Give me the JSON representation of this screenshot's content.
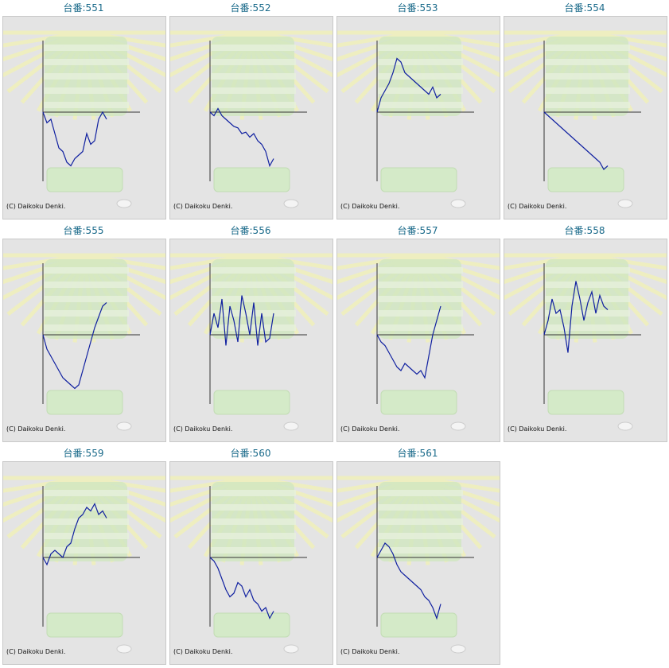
{
  "page": {
    "machine_prefix": "台番:",
    "copyright": "(C) Daikoku Denki.",
    "line_color": "#1020a0",
    "axis_color": "#333333",
    "panel_bg": "#e4e4e4",
    "title_color": "#1a6a8a"
  },
  "chart_data": [
    {
      "type": "line",
      "title": "台番:551",
      "ylim": [
        -1,
        1
      ],
      "x": [
        0,
        1,
        2,
        3,
        4,
        5,
        6,
        7,
        8,
        9,
        10,
        11,
        12,
        13,
        14,
        15,
        16
      ],
      "values": [
        0,
        -0.15,
        -0.1,
        -0.3,
        -0.5,
        -0.55,
        -0.7,
        -0.75,
        -0.65,
        -0.6,
        -0.55,
        -0.3,
        -0.45,
        -0.4,
        -0.1,
        0.0,
        -0.1
      ]
    },
    {
      "type": "line",
      "title": "台番:552",
      "ylim": [
        -1,
        1
      ],
      "x": [
        0,
        1,
        2,
        3,
        4,
        5,
        6,
        7,
        8,
        9,
        10,
        11,
        12,
        13,
        14,
        15,
        16
      ],
      "values": [
        0,
        -0.05,
        0.05,
        -0.05,
        -0.1,
        -0.15,
        -0.2,
        -0.22,
        -0.3,
        -0.28,
        -0.35,
        -0.3,
        -0.4,
        -0.45,
        -0.55,
        -0.75,
        -0.65
      ]
    },
    {
      "type": "line",
      "title": "台番:553",
      "ylim": [
        -1,
        1
      ],
      "x": [
        0,
        1,
        2,
        3,
        4,
        5,
        6,
        7,
        8,
        9,
        10,
        11,
        12,
        13,
        14,
        15,
        16
      ],
      "values": [
        0,
        0.2,
        0.3,
        0.4,
        0.55,
        0.75,
        0.7,
        0.55,
        0.5,
        0.45,
        0.4,
        0.35,
        0.3,
        0.25,
        0.35,
        0.2,
        0.25
      ]
    },
    {
      "type": "line",
      "title": "台番:554",
      "ylim": [
        -1,
        1
      ],
      "x": [
        0,
        1,
        2,
        3,
        4,
        5,
        6,
        7,
        8,
        9,
        10,
        11,
        12,
        13,
        14,
        15,
        16
      ],
      "values": [
        0,
        -0.05,
        -0.1,
        -0.15,
        -0.2,
        -0.25,
        -0.3,
        -0.35,
        -0.4,
        -0.45,
        -0.5,
        -0.55,
        -0.6,
        -0.65,
        -0.7,
        -0.8,
        -0.75
      ]
    },
    {
      "type": "line",
      "title": "台番:555",
      "ylim": [
        -1,
        1
      ],
      "x": [
        0,
        1,
        2,
        3,
        4,
        5,
        6,
        7,
        8,
        9,
        10,
        11,
        12,
        13,
        14,
        15,
        16
      ],
      "values": [
        0,
        -0.2,
        -0.3,
        -0.4,
        -0.5,
        -0.6,
        -0.65,
        -0.7,
        -0.75,
        -0.7,
        -0.5,
        -0.3,
        -0.1,
        0.1,
        0.25,
        0.4,
        0.45
      ]
    },
    {
      "type": "line",
      "title": "台番:556",
      "ylim": [
        -1,
        1
      ],
      "x": [
        0,
        1,
        2,
        3,
        4,
        5,
        6,
        7,
        8,
        9,
        10,
        11,
        12,
        13,
        14,
        15,
        16
      ],
      "values": [
        0,
        0.3,
        0.1,
        0.5,
        -0.15,
        0.4,
        0.2,
        -0.1,
        0.55,
        0.3,
        0.0,
        0.45,
        -0.15,
        0.3,
        -0.1,
        -0.05,
        0.3
      ]
    },
    {
      "type": "line",
      "title": "台番:557",
      "ylim": [
        -1,
        1
      ],
      "x": [
        0,
        1,
        2,
        3,
        4,
        5,
        6,
        7,
        8,
        9,
        10,
        11,
        12,
        13,
        14,
        15,
        16
      ],
      "values": [
        0,
        -0.1,
        -0.15,
        -0.25,
        -0.35,
        -0.45,
        -0.5,
        -0.4,
        -0.45,
        -0.5,
        -0.55,
        -0.5,
        -0.6,
        -0.3,
        0.0,
        0.2,
        0.4
      ]
    },
    {
      "type": "line",
      "title": "台番:558",
      "ylim": [
        -1,
        1
      ],
      "x": [
        0,
        1,
        2,
        3,
        4,
        5,
        6,
        7,
        8,
        9,
        10,
        11,
        12,
        13,
        14,
        15,
        16
      ],
      "values": [
        0,
        0.2,
        0.5,
        0.3,
        0.35,
        0.1,
        -0.25,
        0.4,
        0.75,
        0.5,
        0.2,
        0.45,
        0.6,
        0.3,
        0.55,
        0.4,
        0.35
      ]
    },
    {
      "type": "line",
      "title": "台番:559",
      "ylim": [
        -1,
        1
      ],
      "x": [
        0,
        1,
        2,
        3,
        4,
        5,
        6,
        7,
        8,
        9,
        10,
        11,
        12,
        13,
        14,
        15,
        16
      ],
      "values": [
        0,
        -0.1,
        0.05,
        0.1,
        0.05,
        0.0,
        0.15,
        0.2,
        0.4,
        0.55,
        0.6,
        0.7,
        0.65,
        0.75,
        0.6,
        0.65,
        0.55
      ]
    },
    {
      "type": "line",
      "title": "台番:560",
      "ylim": [
        -1,
        1
      ],
      "x": [
        0,
        1,
        2,
        3,
        4,
        5,
        6,
        7,
        8,
        9,
        10,
        11,
        12,
        13,
        14,
        15,
        16
      ],
      "values": [
        0,
        -0.05,
        -0.15,
        -0.3,
        -0.45,
        -0.55,
        -0.5,
        -0.35,
        -0.4,
        -0.55,
        -0.45,
        -0.6,
        -0.65,
        -0.75,
        -0.7,
        -0.85,
        -0.75
      ]
    },
    {
      "type": "line",
      "title": "台番:561",
      "ylim": [
        -1,
        1
      ],
      "x": [
        0,
        1,
        2,
        3,
        4,
        5,
        6,
        7,
        8,
        9,
        10,
        11,
        12,
        13,
        14,
        15,
        16
      ],
      "values": [
        0,
        0.1,
        0.2,
        0.15,
        0.05,
        -0.1,
        -0.2,
        -0.25,
        -0.3,
        -0.35,
        -0.4,
        -0.45,
        -0.55,
        -0.6,
        -0.7,
        -0.85,
        -0.65
      ]
    }
  ]
}
